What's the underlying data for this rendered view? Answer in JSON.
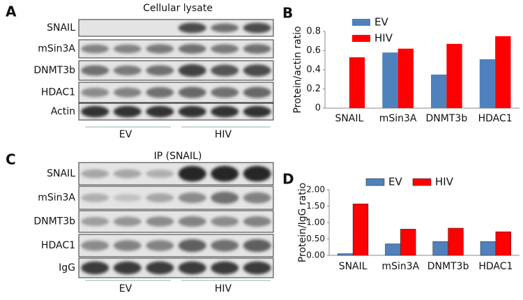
{
  "blots": [
    {
      "panel": "A",
      "title": "Cellular  lysate",
      "rows": [
        "SNAIL",
        "mSin3A",
        "DNMT3b",
        "HDAC1",
        "Actin"
      ],
      "groups": [
        "EV",
        "HIV"
      ]
    },
    {
      "panel": "C",
      "title": "IP  (SNAIL)",
      "rows": [
        "SNAIL",
        "mSin3A",
        "DNMT3b",
        "HDAC1",
        "IgG"
      ],
      "groups": [
        "EV",
        "HIV"
      ]
    }
  ],
  "chart_data": [
    {
      "type": "bar",
      "panel": "B",
      "y_label": "Protein/actin ratio",
      "categories": [
        "SNAIL",
        "mSin3A",
        "DNMT3b",
        "HDAC1"
      ],
      "series": [
        {
          "name": "EV",
          "color": "#4f81bd",
          "values": [
            0,
            0.58,
            0.35,
            0.51
          ]
        },
        {
          "name": "HIV",
          "color": "#ff0000",
          "values": [
            0.53,
            0.62,
            0.67,
            0.75
          ]
        }
      ],
      "ylim": [
        0,
        0.8
      ],
      "yticks": [
        0,
        0.2,
        0.4,
        0.6,
        0.8
      ],
      "legend": "top-left"
    },
    {
      "type": "bar",
      "panel": "D",
      "y_label": "Protein/IgG ratio",
      "categories": [
        "SNAIL",
        "mSin3A",
        "DNMT3b",
        "HDAC1"
      ],
      "series": [
        {
          "name": "EV",
          "color": "#4f81bd",
          "values": [
            0.05,
            0.35,
            0.42,
            0.42
          ]
        },
        {
          "name": "HIV",
          "color": "#ff0000",
          "values": [
            1.57,
            0.8,
            0.83,
            0.72
          ]
        }
      ],
      "ylim": [
        0,
        2
      ],
      "yticks": [
        {
          "value": 0,
          "label": "0.00"
        },
        {
          "value": 0.5,
          "label": "0.50"
        },
        {
          "value": 1,
          "label": "1.00"
        },
        {
          "value": 1.5,
          "label": "1.50"
        },
        {
          "value": 2,
          "label": "2.00"
        }
      ],
      "legend": "top"
    }
  ]
}
